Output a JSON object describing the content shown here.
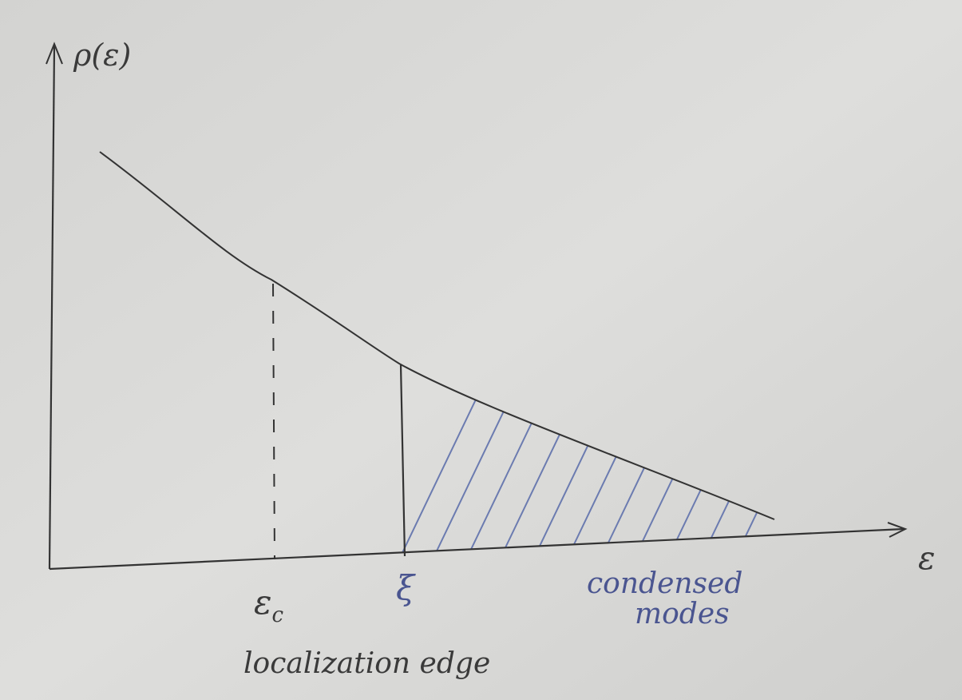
{
  "axes": {
    "y_label": "ρ(ε)",
    "x_label": "ε"
  },
  "markers": [
    {
      "label": "ε",
      "subscript": "c"
    },
    {
      "label": "ξ"
    }
  ],
  "annotations": {
    "condensed_modes": [
      "condensed",
      "modes"
    ],
    "localization_edge": "localization edge"
  }
}
